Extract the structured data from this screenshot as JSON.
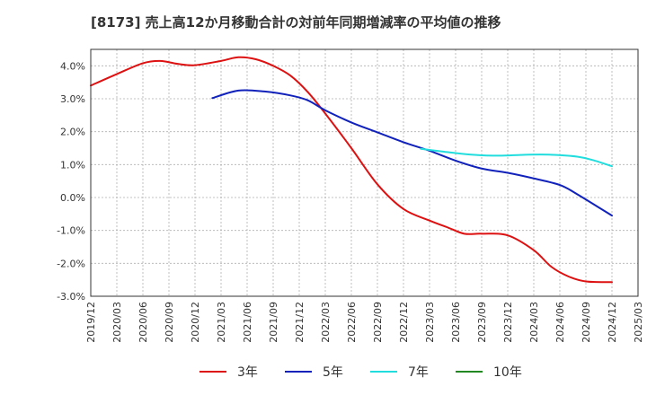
{
  "chart_data": {
    "type": "line",
    "title": "[8173]  売上高12か月移動合計の対前年同期増減率の平均値の推移",
    "xlabel": "",
    "ylabel": "",
    "ylim": [
      -3.0,
      4.5
    ],
    "y_ticks": [
      4.0,
      3.0,
      2.0,
      1.0,
      0.0,
      -1.0,
      -2.0,
      -3.0
    ],
    "y_tick_labels": [
      "4.0%",
      "3.0%",
      "2.0%",
      "1.0%",
      "0.0%",
      "-1.0%",
      "-2.0%",
      "-3.0%"
    ],
    "x_tick_labels": [
      "2019/12",
      "2020/03",
      "2020/06",
      "2020/09",
      "2020/12",
      "2021/03",
      "2021/06",
      "2021/09",
      "2021/12",
      "2022/03",
      "2022/06",
      "2022/09",
      "2022/12",
      "2023/03",
      "2023/06",
      "2023/09",
      "2023/12",
      "2024/03",
      "2024/06",
      "2024/09",
      "2024/12",
      "2025/03"
    ],
    "grid": true,
    "legend_position": "bottom",
    "series": [
      {
        "name": "3年",
        "color": "#dd1111",
        "points": [
          [
            "2019/12",
            3.4
          ],
          [
            "2020/03",
            3.75
          ],
          [
            "2020/06",
            4.08
          ],
          [
            "2020/08",
            4.15
          ],
          [
            "2020/10",
            4.06
          ],
          [
            "2020/12",
            4.02
          ],
          [
            "2021/03",
            4.15
          ],
          [
            "2021/05",
            4.26
          ],
          [
            "2021/07",
            4.2
          ],
          [
            "2021/09",
            4.0
          ],
          [
            "2021/11",
            3.7
          ],
          [
            "2022/01",
            3.2
          ],
          [
            "2022/03",
            2.55
          ],
          [
            "2022/06",
            1.5
          ],
          [
            "2022/09",
            0.4
          ],
          [
            "2022/12",
            -0.35
          ],
          [
            "2023/03",
            -0.7
          ],
          [
            "2023/05",
            -0.9
          ],
          [
            "2023/07",
            -1.1
          ],
          [
            "2023/09",
            -1.1
          ],
          [
            "2023/12",
            -1.15
          ],
          [
            "2024/03",
            -1.6
          ],
          [
            "2024/05",
            -2.1
          ],
          [
            "2024/07",
            -2.4
          ],
          [
            "2024/09",
            -2.55
          ],
          [
            "2024/12",
            -2.57
          ]
        ]
      },
      {
        "name": "5年",
        "color": "#1122bb",
        "points": [
          [
            "2021/02",
            3.02
          ],
          [
            "2021/05",
            3.25
          ],
          [
            "2021/08",
            3.22
          ],
          [
            "2021/11",
            3.1
          ],
          [
            "2022/01",
            2.95
          ],
          [
            "2022/03",
            2.65
          ],
          [
            "2022/06",
            2.28
          ],
          [
            "2022/09",
            1.98
          ],
          [
            "2022/12",
            1.68
          ],
          [
            "2023/03",
            1.42
          ],
          [
            "2023/06",
            1.12
          ],
          [
            "2023/09",
            0.88
          ],
          [
            "2023/12",
            0.75
          ],
          [
            "2024/03",
            0.58
          ],
          [
            "2024/06",
            0.38
          ],
          [
            "2024/08",
            0.1
          ],
          [
            "2024/12",
            -0.55
          ]
        ]
      },
      {
        "name": "7年",
        "color": "#22dddd",
        "points": [
          [
            "2023/02",
            1.48
          ],
          [
            "2023/05",
            1.38
          ],
          [
            "2023/08",
            1.3
          ],
          [
            "2023/11",
            1.27
          ],
          [
            "2024/02",
            1.3
          ],
          [
            "2024/05",
            1.3
          ],
          [
            "2024/08",
            1.24
          ],
          [
            "2024/10",
            1.12
          ],
          [
            "2024/12",
            0.95
          ]
        ]
      },
      {
        "name": "10年",
        "color": "#228822",
        "points": []
      }
    ]
  }
}
